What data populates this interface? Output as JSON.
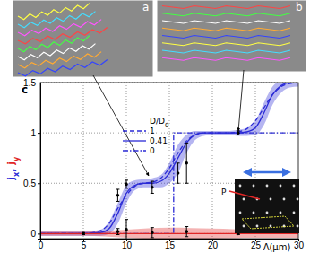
{
  "chart_data": {
    "type": "line",
    "panel_labels": [
      "a",
      "b",
      "c"
    ],
    "annotation": "P",
    "xlabel": "Λ(μm)",
    "ylabel": [
      {
        "text": "j",
        "sub": "x",
        "color": "#2b2bd6"
      },
      {
        "text": ", ",
        "sub": null,
        "color": "#2b2bd6"
      },
      {
        "text": "j",
        "sub": "y",
        "color": "#e02525"
      }
    ],
    "xlim": [
      0,
      30
    ],
    "ylim": [
      -0.05,
      1.5
    ],
    "xticks": [
      0,
      5,
      10,
      15,
      20,
      25,
      30
    ],
    "yticks": [
      0,
      0.5,
      1,
      1.5
    ],
    "grid": true,
    "legend": "upper left",
    "legend_title": {
      "text": "D/D",
      "sub": "0"
    },
    "series": [
      {
        "name": "1",
        "color": "#2b2bd6",
        "line_style": "dashed",
        "x": [
          0,
          5,
          7,
          8,
          9,
          10,
          11,
          12,
          13,
          14,
          15,
          16,
          17,
          18,
          19,
          20,
          21,
          22,
          23,
          24,
          25,
          26,
          27,
          28,
          29,
          30
        ],
        "values": [
          0,
          0,
          0.03,
          0.1,
          0.25,
          0.38,
          0.47,
          0.5,
          0.51,
          0.55,
          0.65,
          0.8,
          0.92,
          0.98,
          1,
          1,
          1,
          1,
          1.01,
          1.04,
          1.12,
          1.25,
          1.38,
          1.46,
          1.49,
          1.5
        ]
      },
      {
        "name": "0.41",
        "color": "#2b2bd6",
        "line_style": "solid",
        "x": [
          0,
          5,
          7,
          8,
          9,
          10,
          11,
          12,
          13,
          14,
          15,
          16,
          17,
          18,
          19,
          20,
          21,
          22,
          23,
          24,
          25,
          26,
          27,
          28,
          29,
          30
        ],
        "values": [
          0,
          0,
          0.01,
          0.05,
          0.2,
          0.4,
          0.48,
          0.5,
          0.5,
          0.52,
          0.6,
          0.75,
          0.9,
          0.98,
          1,
          1,
          1,
          1,
          1,
          1.01,
          1.05,
          1.2,
          1.38,
          1.47,
          1.5,
          1.5
        ],
        "lower": [
          -0.02,
          -0.02,
          -0.02,
          0,
          0.1,
          0.3,
          0.43,
          0.46,
          0.46,
          0.46,
          0.5,
          0.6,
          0.8,
          0.93,
          0.97,
          0.98,
          0.98,
          0.98,
          0.97,
          0.97,
          0.98,
          1.08,
          1.28,
          1.4,
          1.45,
          1.46
        ],
        "upper": [
          0.02,
          0.02,
          0.04,
          0.12,
          0.3,
          0.48,
          0.53,
          0.54,
          0.55,
          0.58,
          0.7,
          0.88,
          0.98,
          1.02,
          1.02,
          1.02,
          1.02,
          1.02,
          1.03,
          1.05,
          1.12,
          1.3,
          1.46,
          1.52,
          1.54,
          1.54
        ]
      },
      {
        "name": "0",
        "color": "#2b2bd6",
        "line_style": "dashdot",
        "x": [
          0,
          15.5,
          15.5,
          30
        ],
        "values": [
          0,
          0,
          1,
          1
        ]
      },
      {
        "color": "#e02525",
        "line_style": "solid",
        "x": [
          0,
          5,
          10,
          15,
          20,
          25,
          30
        ],
        "values": [
          0,
          0,
          0,
          0,
          0,
          0,
          0
        ],
        "lower": [
          -0.02,
          -0.02,
          -0.04,
          -0.06,
          -0.05,
          -0.04,
          -0.04
        ],
        "upper": [
          0.02,
          0.02,
          0.04,
          0.06,
          0.05,
          0.04,
          0.04
        ]
      }
    ],
    "points": [
      {
        "color": "#000000",
        "marker": "circle",
        "x": [
          5,
          9,
          10,
          13,
          16,
          17,
          23
        ],
        "values": [
          0,
          0.38,
          0.49,
          0.46,
          0.6,
          0.7,
          1.0
        ],
        "error": [
          0.01,
          0.06,
          0.04,
          0.06,
          0.1,
          0.2,
          0.02
        ]
      },
      {
        "color": "#000000",
        "marker": "circle",
        "x": [
          9,
          10,
          13,
          17,
          23
        ],
        "values": [
          0.02,
          0.04,
          0.01,
          0.02,
          0
        ],
        "error": [
          0.03,
          0.1,
          0.05,
          0.05,
          0.01
        ]
      }
    ]
  }
}
